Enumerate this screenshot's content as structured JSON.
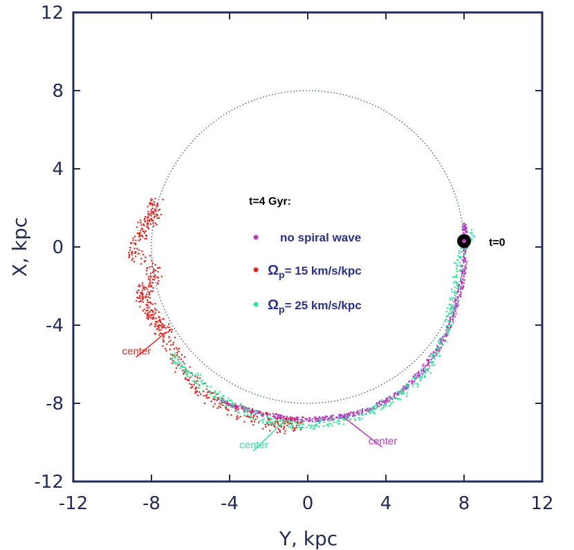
{
  "chart_data": {
    "type": "scatter",
    "xlabel": "Y, kpc",
    "ylabel": "X, kpc",
    "xlim": [
      -12,
      12
    ],
    "ylim": [
      12,
      -12
    ],
    "x_ticks": [
      -12,
      -8,
      -4,
      0,
      4,
      8,
      12
    ],
    "y_ticks": [
      -12,
      -8,
      -4,
      0,
      4,
      8,
      12
    ],
    "x_tick_labels": [
      "-12",
      "-8",
      "-4",
      "0",
      "4",
      "8",
      "12"
    ],
    "y_tick_labels": [
      "-12",
      "-8",
      "-4",
      "0",
      "4",
      "8",
      "12"
    ],
    "legend": {
      "title": "t=4 Gyr:",
      "entries": [
        {
          "name": "no spiral wave",
          "color": "#b63cc4"
        },
        {
          "name": "Ω",
          "subscript": "p",
          "suffix": "= 15 km/s/kpc",
          "color": "#e8231c"
        },
        {
          "name": "Ω",
          "subscript": "p",
          "suffix": "= 25 km/s/kpc",
          "color": "#2ee59a"
        }
      ]
    },
    "reference_circle": {
      "center": [
        0,
        0
      ],
      "radius": 8,
      "style": "dotted",
      "color": "#2a4d8f"
    },
    "start_marker": {
      "x": 8,
      "y": 0.3,
      "label": "t=0",
      "color": "#000000"
    },
    "annotations": [
      {
        "text": "center",
        "color": "#2ee59a",
        "x": -3.5,
        "y": -10.3,
        "arrow_to": [
          -1.2,
          -8.9
        ]
      },
      {
        "text": "center",
        "color": "#b63cc4",
        "x": 3.1,
        "y": -10.1,
        "arrow_to": [
          1.7,
          -8.6
        ]
      },
      {
        "text": "center",
        "color": "#e8231c",
        "x": -9.5,
        "y": -5.5,
        "arrow_to": [
          -7.3,
          -4.4
        ]
      }
    ],
    "series": [
      {
        "name": "no spiral wave",
        "color": "#b63cc4",
        "description": "stars along arc r≈8.9 kpc from polar angle -5° to -90°",
        "points": [
          [
            -4.6,
            -7.8
          ],
          [
            -3.6,
            -8.2
          ],
          [
            -2.5,
            -8.5
          ],
          [
            -1.4,
            -8.7
          ],
          [
            -0.3,
            -8.85
          ],
          [
            0.8,
            -8.8
          ],
          [
            1.9,
            -8.65
          ],
          [
            3.0,
            -8.35
          ],
          [
            4.0,
            -7.9
          ],
          [
            5.0,
            -7.2
          ],
          [
            5.9,
            -6.3
          ],
          [
            6.6,
            -5.3
          ],
          [
            7.2,
            -4.2
          ],
          [
            7.6,
            -3.0
          ],
          [
            7.9,
            -1.8
          ],
          [
            8.05,
            -0.6
          ],
          [
            8.1,
            0.4
          ],
          [
            8.0,
            1.2
          ]
        ]
      },
      {
        "name": "Ω_p = 15 km/s/kpc",
        "color": "#e8231c",
        "description": "dispersed stars, arc from polar angle -98° to -205°, clump near (-7.5,-4)",
        "points": [
          [
            -2.0,
            -9.1
          ],
          [
            -1.2,
            -9.2
          ],
          [
            -0.5,
            -9.0
          ],
          [
            -3.0,
            -8.7
          ],
          [
            -4.2,
            -8.2
          ],
          [
            -5.2,
            -7.6
          ],
          [
            -6.1,
            -6.8
          ],
          [
            -6.8,
            -5.6
          ],
          [
            -7.3,
            -4.4
          ],
          [
            -7.6,
            -4.0
          ],
          [
            -7.9,
            -3.6
          ],
          [
            -8.2,
            -3.0
          ],
          [
            -8.5,
            -2.4
          ],
          [
            -8.0,
            -2.0
          ],
          [
            -7.8,
            -1.2
          ],
          [
            -9.0,
            -0.3
          ],
          [
            -8.6,
            0.6
          ],
          [
            -8.2,
            1.2
          ],
          [
            -7.9,
            1.8
          ],
          [
            -7.7,
            2.2
          ]
        ]
      },
      {
        "name": "Ω_p = 25 km/s/kpc",
        "color": "#2ee59a",
        "description": "stars spread in a band from polar angle 0° to -150°",
        "points": [
          [
            -7.0,
            -5.5
          ],
          [
            -6.2,
            -6.3
          ],
          [
            -5.4,
            -7.0
          ],
          [
            -4.4,
            -7.8
          ],
          [
            -3.2,
            -8.4
          ],
          [
            -2.0,
            -8.9
          ],
          [
            -0.8,
            -9.1
          ],
          [
            0.4,
            -9.1
          ],
          [
            1.6,
            -8.9
          ],
          [
            2.8,
            -8.6
          ],
          [
            3.9,
            -8.1
          ],
          [
            4.9,
            -7.5
          ],
          [
            5.8,
            -6.7
          ],
          [
            6.5,
            -5.7
          ],
          [
            7.0,
            -4.5
          ],
          [
            7.4,
            -3.2
          ],
          [
            7.6,
            -1.8
          ],
          [
            7.8,
            -0.5
          ],
          [
            8.4,
            0.7
          ]
        ]
      }
    ]
  }
}
